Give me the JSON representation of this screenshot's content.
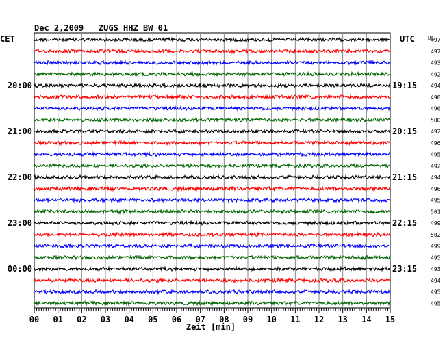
{
  "chart_data": {
    "type": "line",
    "title": "Dec 2,2009   ZUGS HHZ BW 01",
    "left_label": "CET",
    "right_label": "UTC",
    "dc_label": "DC",
    "xlabel": "Zeit [min]",
    "xlim": [
      0,
      15
    ],
    "x_ticks": [
      "00",
      "01",
      "02",
      "03",
      "04",
      "05",
      "06",
      "07",
      "08",
      "09",
      "10",
      "11",
      "12",
      "13",
      "14",
      "15"
    ],
    "trace_colors": [
      "#000000",
      "#ff0000",
      "#0000ff",
      "#006600"
    ],
    "dc_values": [
      497,
      497,
      493,
      492,
      494,
      490,
      496,
      500,
      492,
      496,
      495,
      492,
      494,
      496,
      495,
      501,
      499,
      502,
      499,
      495,
      493,
      494,
      495,
      495
    ],
    "left_time_labels": [
      {
        "trace": 4,
        "text": "20:00"
      },
      {
        "trace": 8,
        "text": "21:00"
      },
      {
        "trace": 12,
        "text": "22:00"
      },
      {
        "trace": 16,
        "text": "23:00"
      },
      {
        "trace": 20,
        "text": "00:00"
      }
    ],
    "right_time_labels": [
      {
        "trace": 4,
        "text": "19:15"
      },
      {
        "trace": 8,
        "text": "20:15"
      },
      {
        "trace": 12,
        "text": "21:15"
      },
      {
        "trace": 16,
        "text": "22:15"
      },
      {
        "trace": 20,
        "text": "23:15"
      }
    ],
    "grid": true
  }
}
